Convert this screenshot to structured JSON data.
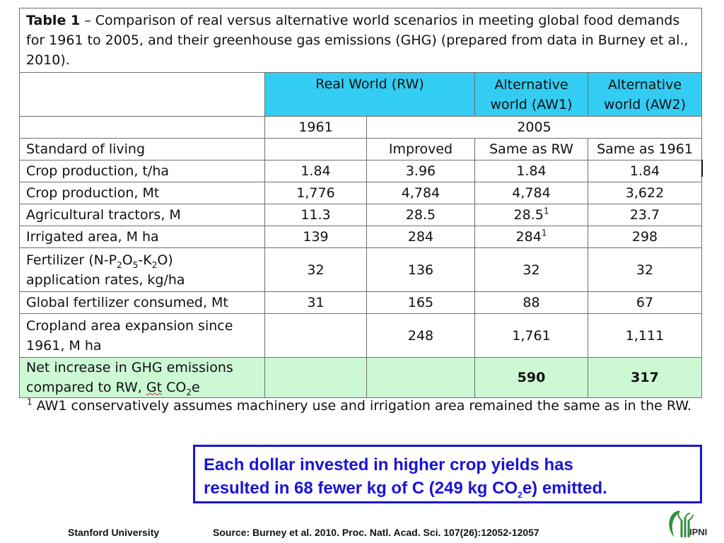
{
  "table": {
    "caption": {
      "label": "Table 1",
      "text": " – Comparison of real versus alternative world scenarios in meeting global food demands for 1961 to 2005, and their greenhouse gas emissions (GHG) (prepared from data in Burney et al., 2010)."
    },
    "header": {
      "rw": "Real World (RW)",
      "aw1_line1": "Alternative",
      "aw1_line2": "world (AW1)",
      "aw2_line1": "Alternative",
      "aw2_line2": "world (AW2)"
    },
    "years": {
      "y1961": "1961",
      "y2005": "2005"
    },
    "rows": {
      "standard": {
        "label": "Standard of living",
        "c1961": "",
        "c2005": "Improved",
        "aw1": "Same as RW",
        "aw2": "Same as 1961"
      },
      "crop_tha": {
        "label": "Crop production, t/ha",
        "c1961": "1.84",
        "c2005": "3.96",
        "aw1": "1.84",
        "aw2": "1.84"
      },
      "crop_mt": {
        "label": "Crop production, Mt",
        "c1961": "1,776",
        "c2005": "4,784",
        "aw1": "4,784",
        "aw2": "3,622"
      },
      "tractors": {
        "label": "Agricultural tractors, M",
        "c1961": "11.3",
        "c2005": "28.5",
        "aw1": "28.5",
        "aw1_sup": "1",
        "aw2": "23.7"
      },
      "irrigated": {
        "label": "Irrigated area, M ha",
        "c1961": "139",
        "c2005": "284",
        "aw1": "284",
        "aw1_sup": "1",
        "aw2": "298"
      },
      "fertilizer_rates": {
        "label_p1": "Fertilizer (N-P",
        "label_sub1": "2",
        "label_p2": "O",
        "label_sub2": "5",
        "label_p3": "-K",
        "label_sub3": "2",
        "label_p4": "O)",
        "label_line2": "application rates, kg/ha",
        "c1961": "32",
        "c2005": "136",
        "aw1": "32",
        "aw2": "32"
      },
      "fertilizer_global": {
        "label": "Global fertilizer consumed, Mt",
        "c1961": "31",
        "c2005": "165",
        "aw1": "88",
        "aw2": "67"
      },
      "cropland": {
        "label_line1": "Cropland area expansion since",
        "label_line2": "1961, M ha",
        "c1961": "",
        "c2005": "248",
        "aw1": "1,761",
        "aw2": "1,111"
      },
      "ghg": {
        "label_line1": "Net increase in GHG emissions",
        "label_line2_pre": "compared to RW, ",
        "label_unit": "Gt",
        "label_co": " CO",
        "label_sub": "2",
        "label_e": "e",
        "c1961": "",
        "c2005": "",
        "aw1": "590",
        "aw2": "317"
      }
    }
  },
  "footnote": {
    "marker": "1",
    "text": " AW1 conservatively assumes machinery use and irrigation area remained the same as in the RW."
  },
  "callout": {
    "text_line1": "Each dollar invested in higher crop yields has",
    "text_line2_pre": "resulted in 68 fewer kg of C (249 kg CO",
    "text_sub": "2",
    "text_line2_post": "e) emitted."
  },
  "footer": {
    "institution": "Stanford University",
    "source": "Source: Burney et al. 2010. Proc. Natl. Acad. Sci. 107(26):12052-12057",
    "logo_text": "IPNI"
  },
  "colors": {
    "header_cyan": "#33ccf2",
    "ghg_green": "#ccf8d4",
    "callout_blue": "#1a14d6"
  }
}
